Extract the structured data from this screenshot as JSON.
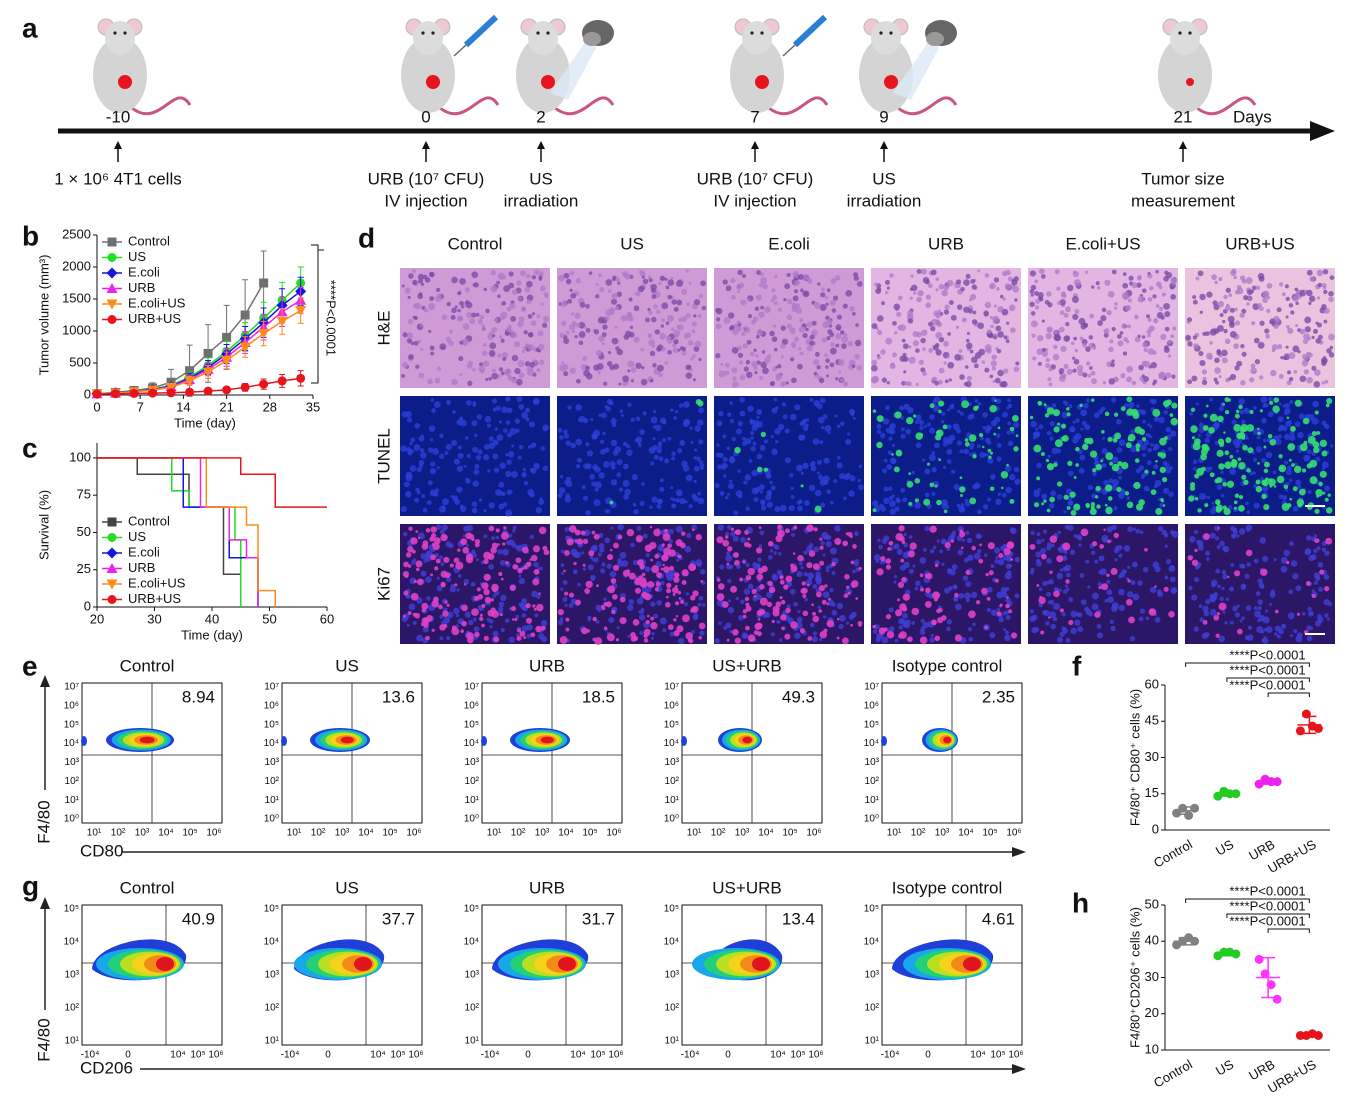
{
  "timeline": {
    "panel": "a",
    "unit": "Days",
    "events": [
      {
        "day": "-10",
        "note": [
          "1 × 10⁶ 4T1 cells"
        ]
      },
      {
        "day": "0",
        "note": [
          "URB (10⁷ CFU)",
          "IV injection"
        ]
      },
      {
        "day": "2",
        "note": [
          "US",
          "irradiation"
        ]
      },
      {
        "day": "7",
        "note": [
          "URB (10⁷ CFU)",
          "IV injection"
        ]
      },
      {
        "day": "9",
        "note": [
          "US",
          "irradiation"
        ]
      },
      {
        "day": "21",
        "note": [
          "Tumor size",
          "measurement"
        ]
      }
    ]
  },
  "chart_data": [
    {
      "panel": "b",
      "type": "line",
      "x_label": "Time (day)",
      "y_label": "Tumor volume (mm³)",
      "annotation": "****P<0.0001",
      "x": [
        0,
        3,
        6,
        9,
        12,
        15,
        18,
        21,
        24,
        27,
        30,
        33
      ],
      "xlim": [
        0,
        35
      ],
      "xticks": [
        0,
        7,
        14,
        21,
        28,
        35
      ],
      "ylim": [
        0,
        2500
      ],
      "yticks": [
        0,
        500,
        1000,
        1500,
        2000,
        2500
      ],
      "series": [
        {
          "name": "Control",
          "color": "#707070",
          "marker": "square",
          "values": [
            20,
            40,
            70,
            110,
            200,
            380,
            650,
            900,
            1250,
            1750,
            null,
            null
          ],
          "errors": [
            10,
            20,
            40,
            80,
            200,
            400,
            450,
            500,
            550,
            500,
            null,
            null
          ]
        },
        {
          "name": "US",
          "color": "#22dd22",
          "marker": "circle",
          "values": [
            20,
            35,
            60,
            90,
            150,
            280,
            460,
            680,
            930,
            1200,
            1480,
            1750
          ],
          "errors": [
            10,
            15,
            20,
            30,
            50,
            80,
            120,
            160,
            200,
            250,
            280,
            250
          ]
        },
        {
          "name": "E.coli",
          "color": "#1515e0",
          "marker": "diamond",
          "values": [
            20,
            35,
            55,
            85,
            140,
            260,
            430,
            640,
            880,
            1130,
            1400,
            1620
          ],
          "errors": [
            10,
            15,
            20,
            30,
            50,
            80,
            110,
            150,
            190,
            230,
            260,
            220
          ]
        },
        {
          "name": "URB",
          "color": "#ee22ee",
          "marker": "triangle-up",
          "values": [
            20,
            30,
            50,
            80,
            130,
            240,
            400,
            590,
            820,
            1060,
            1300,
            1480
          ],
          "errors": [
            10,
            15,
            20,
            30,
            50,
            70,
            100,
            140,
            170,
            200,
            230,
            200
          ]
        },
        {
          "name": "E.coli+US",
          "color": "#ff8c1a",
          "marker": "triangle-down",
          "values": [
            20,
            30,
            50,
            75,
            120,
            220,
            360,
            540,
            750,
            960,
            1150,
            1320
          ],
          "errors": [
            10,
            15,
            20,
            30,
            40,
            70,
            100,
            130,
            160,
            190,
            200,
            200
          ]
        },
        {
          "name": "URB+US",
          "color": "#e8141c",
          "marker": "circle",
          "values": [
            15,
            20,
            25,
            30,
            35,
            45,
            60,
            80,
            120,
            170,
            220,
            260
          ],
          "errors": [
            5,
            5,
            8,
            10,
            10,
            15,
            20,
            40,
            60,
            80,
            100,
            120
          ]
        }
      ]
    },
    {
      "panel": "c",
      "type": "step",
      "x_label": "Time (day)",
      "y_label": "Survival (%)",
      "xlim": [
        20,
        60
      ],
      "xticks": [
        20,
        30,
        40,
        50,
        60
      ],
      "ylim": [
        0,
        110
      ],
      "yticks": [
        0,
        25,
        50,
        75,
        100
      ],
      "series": [
        {
          "name": "Control",
          "color": "#444444",
          "marker": "square",
          "x": [
            20,
            27,
            36,
            42,
            45
          ],
          "values": [
            100,
            89,
            67,
            22,
            0
          ]
        },
        {
          "name": "US",
          "color": "#22dd22",
          "marker": "circle",
          "x": [
            20,
            33,
            36,
            44,
            45
          ],
          "values": [
            100,
            78,
            67,
            45,
            0
          ]
        },
        {
          "name": "E.coli",
          "color": "#1515e0",
          "marker": "diamond",
          "x": [
            20,
            35,
            43,
            48
          ],
          "values": [
            100,
            67,
            33,
            0
          ]
        },
        {
          "name": "URB",
          "color": "#ee22ee",
          "marker": "triangle-up",
          "x": [
            20,
            38,
            43,
            46,
            48
          ],
          "values": [
            100,
            67,
            45,
            33,
            0
          ]
        },
        {
          "name": "E.coli+US",
          "color": "#ff8c1a",
          "marker": "triangle-down",
          "x": [
            20,
            39,
            46,
            48,
            51
          ],
          "values": [
            100,
            67,
            55,
            11,
            0
          ]
        },
        {
          "name": "URB+US",
          "color": "#e8141c",
          "marker": "circle",
          "x": [
            20,
            45,
            51,
            60
          ],
          "values": [
            100,
            89,
            67,
            67
          ]
        }
      ]
    },
    {
      "panel": "f",
      "type": "dot",
      "y_label": "F4/80⁺ CD80⁺ cells (%)",
      "categories": [
        "Control",
        "US",
        "URB",
        "URB+US"
      ],
      "colors": [
        "#808080",
        "#22cc22",
        "#ee22ee",
        "#e8141c"
      ],
      "values": [
        [
          7,
          9,
          6,
          9
        ],
        [
          14,
          16,
          15,
          15
        ],
        [
          19,
          21,
          20,
          20
        ],
        [
          41,
          48,
          43,
          42
        ]
      ],
      "means": [
        8,
        15,
        20,
        43.5
      ],
      "errors": [
        1.5,
        1,
        1,
        3.5
      ],
      "ylim": [
        0,
        60
      ],
      "yticks": [
        0,
        15,
        30,
        45,
        60
      ],
      "annotations": [
        "****P<0.0001",
        "****P<0.0001",
        "****P<0.0001"
      ]
    },
    {
      "panel": "h",
      "type": "dot",
      "y_label": "F4/80⁺CD206⁺ cells (%)",
      "categories": [
        "Control",
        "US",
        "URB",
        "URB+US"
      ],
      "colors": [
        "#808080",
        "#22cc22",
        "#ff33ff",
        "#e8141c"
      ],
      "values": [
        [
          39,
          40,
          41,
          40
        ],
        [
          36,
          37,
          37,
          36.5
        ],
        [
          35,
          31,
          28,
          24
        ],
        [
          14,
          14,
          14.5,
          14
        ]
      ],
      "means": [
        40,
        36.5,
        30,
        14.1
      ],
      "errors": [
        1,
        0.5,
        5.5,
        0.3
      ],
      "ylim": [
        10,
        50
      ],
      "yticks": [
        10,
        20,
        30,
        40,
        50
      ],
      "annotations": [
        "****P<0.0001",
        "****P<0.0001",
        "****P<0.0001"
      ]
    }
  ],
  "histology": {
    "panel": "d",
    "columns": [
      "Control",
      "US",
      "E.coli",
      "URB",
      "E.coli+US",
      "URB+US"
    ],
    "rows": [
      "H&E",
      "TUNEL",
      "Ki67"
    ]
  },
  "flow_cytometry": [
    {
      "panel": "e",
      "x_label": "CD80",
      "y_label": "F4/80",
      "xticks": [
        "10¹",
        "10²",
        "10³",
        "10⁴",
        "10⁵",
        "10⁶"
      ],
      "yticks": [
        "10⁷",
        "10⁶",
        "10⁵",
        "10⁴",
        "10³",
        "10²",
        "10¹",
        "10⁰"
      ],
      "plots": [
        {
          "title": "Control",
          "value": 8.94
        },
        {
          "title": "US",
          "value": 13.6
        },
        {
          "title": "URB",
          "value": 18.5
        },
        {
          "title": "US+URB",
          "value": 49.3
        },
        {
          "title": "Isotype control",
          "value": 2.35
        }
      ]
    },
    {
      "panel": "g",
      "x_label": "CD206",
      "y_label": "F4/80",
      "xticks": [
        "-10⁴",
        "0",
        "10⁴",
        "10⁵",
        "10⁶"
      ],
      "yticks": [
        "10⁵",
        "10⁴",
        "10³",
        "10²",
        "10¹"
      ],
      "plots": [
        {
          "title": "Control",
          "value": 40.9
        },
        {
          "title": "US",
          "value": 37.7
        },
        {
          "title": "URB",
          "value": 31.7
        },
        {
          "title": "US+URB",
          "value": 13.4
        },
        {
          "title": "Isotype control",
          "value": 4.61
        }
      ]
    }
  ]
}
